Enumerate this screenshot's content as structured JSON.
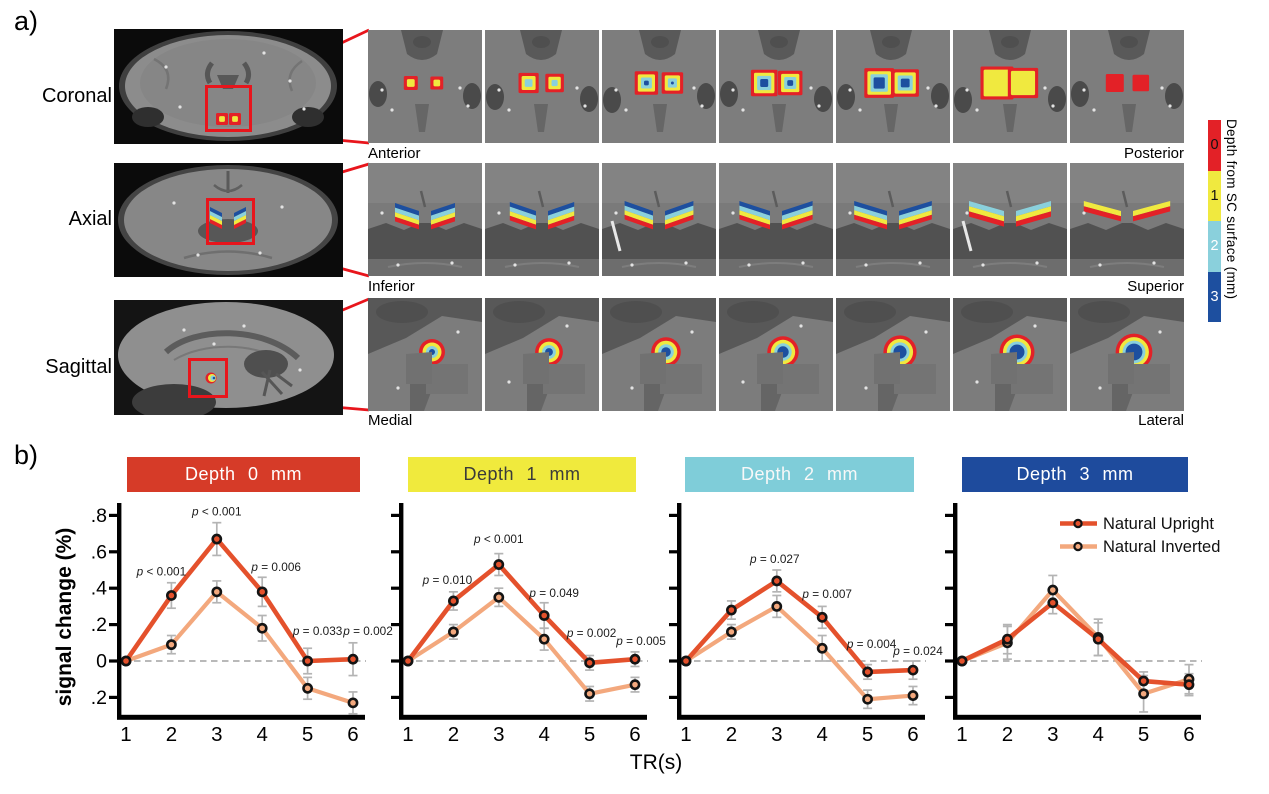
{
  "panel_a": {
    "label": "a)",
    "rows": [
      {
        "view": "Coronal",
        "left_label": "Anterior",
        "right_label": "Posterior",
        "n_slices": 7
      },
      {
        "view": "Axial",
        "left_label": "Inferior",
        "right_label": "Superior",
        "n_slices": 7
      },
      {
        "view": "Sagittal",
        "left_label": "Medial",
        "right_label": "Lateral",
        "n_slices": 7
      }
    ],
    "colorbar": {
      "title": "Depth from SC surface (mm)",
      "ticks": [
        "0",
        "1",
        "2",
        "3"
      ],
      "colors": [
        "#e32127",
        "#f0e93f",
        "#8ad0dc",
        "#1d4f9f"
      ],
      "tick_text_colors": [
        "#111111",
        "#111111",
        "#ffffff",
        "#ffffff"
      ]
    },
    "callout_color": "#e8151c"
  },
  "panel_b": {
    "label": "b)",
    "ylabel": "signal change (%)",
    "xlabel": "TR(s)",
    "legend": [
      {
        "label": "Natural Upright",
        "color": "#e4512c"
      },
      {
        "label": "Natural Inverted",
        "color": "#f3a87d"
      }
    ]
  },
  "chart_data": [
    {
      "type": "line",
      "title": "Depth 0 mm",
      "header_color": "#d63b28",
      "header_text_color": "#ffffff",
      "x": [
        1,
        2,
        3,
        4,
        5,
        6
      ],
      "xlabel": "TR(s)",
      "ylabel": "signal change (%)",
      "ylim": [
        -0.32,
        0.85
      ],
      "yticks": [
        0.8,
        0.6,
        0.4,
        0.2,
        0,
        -0.2
      ],
      "show_ytick_labels": true,
      "zero_line": true,
      "legend_visible": false,
      "series": [
        {
          "name": "Natural Upright",
          "color": "#e4512c",
          "values": [
            0,
            0.36,
            0.67,
            0.38,
            0.0,
            0.01
          ],
          "err": [
            0,
            0.07,
            0.09,
            0.08,
            0.07,
            0.09
          ]
        },
        {
          "name": "Natural Inverted",
          "color": "#f3a87d",
          "values": [
            0,
            0.09,
            0.38,
            0.18,
            -0.15,
            -0.23
          ],
          "err": [
            0,
            0.05,
            0.06,
            0.07,
            0.06,
            0.06
          ]
        }
      ],
      "annotations": [
        {
          "x": 2,
          "y": 0.47,
          "dx": -10,
          "text": "p < 0.001"
        },
        {
          "x": 3,
          "y": 0.8,
          "dx": 0,
          "text": "p < 0.001"
        },
        {
          "x": 4,
          "y": 0.495,
          "dx": 14,
          "text": "p = 0.006"
        },
        {
          "x": 5,
          "y": 0.143,
          "dx": 10,
          "text": "p = 0.033"
        },
        {
          "x": 6,
          "y": 0.143,
          "dx": 15,
          "text": "p = 0.002"
        }
      ]
    },
    {
      "type": "line",
      "title": "Depth 1 mm",
      "header_color": "#f0ea3d",
      "header_text_color": "#3a3a3a",
      "x": [
        1,
        2,
        3,
        4,
        5,
        6
      ],
      "xlabel": "TR(s)",
      "ylabel": "signal change (%)",
      "ylim": [
        -0.32,
        0.85
      ],
      "yticks": [
        0.8,
        0.6,
        0.4,
        0.2,
        0,
        -0.2
      ],
      "show_ytick_labels": false,
      "zero_line": true,
      "legend_visible": false,
      "series": [
        {
          "name": "Natural Upright",
          "color": "#e4512c",
          "values": [
            0,
            0.33,
            0.53,
            0.25,
            -0.01,
            0.01
          ],
          "err": [
            0,
            0.05,
            0.06,
            0.07,
            0.04,
            0.04
          ]
        },
        {
          "name": "Natural Inverted",
          "color": "#f3a87d",
          "values": [
            0,
            0.16,
            0.35,
            0.12,
            -0.18,
            -0.13
          ],
          "err": [
            0,
            0.04,
            0.05,
            0.06,
            0.04,
            0.04
          ]
        }
      ],
      "annotations": [
        {
          "x": 2,
          "y": 0.423,
          "dx": -6,
          "text": "p = 0.010"
        },
        {
          "x": 3,
          "y": 0.648,
          "dx": 0,
          "text": "p < 0.001"
        },
        {
          "x": 4,
          "y": 0.352,
          "dx": 10,
          "text": "p = 0.049"
        },
        {
          "x": 5,
          "y": 0.132,
          "dx": 2,
          "text": "p = 0.002"
        },
        {
          "x": 6,
          "y": 0.088,
          "dx": 6,
          "text": "p = 0.005"
        }
      ]
    },
    {
      "type": "line",
      "title": "Depth 2 mm",
      "header_color": "#7fcdd9",
      "header_text_color": "#f8f8f8",
      "x": [
        1,
        2,
        3,
        4,
        5,
        6
      ],
      "xlabel": "TR(s)",
      "ylabel": "signal change (%)",
      "ylim": [
        -0.32,
        0.85
      ],
      "yticks": [
        0.8,
        0.6,
        0.4,
        0.2,
        0,
        -0.2
      ],
      "show_ytick_labels": false,
      "zero_line": true,
      "legend_visible": false,
      "series": [
        {
          "name": "Natural Upright",
          "color": "#e4512c",
          "values": [
            0,
            0.28,
            0.44,
            0.24,
            -0.06,
            -0.05
          ],
          "err": [
            0,
            0.05,
            0.06,
            0.06,
            0.04,
            0.05
          ]
        },
        {
          "name": "Natural Inverted",
          "color": "#f3a87d",
          "values": [
            0,
            0.16,
            0.3,
            0.07,
            -0.21,
            -0.19
          ],
          "err": [
            0,
            0.04,
            0.06,
            0.07,
            0.05,
            0.05
          ]
        }
      ],
      "annotations": [
        {
          "x": 3,
          "y": 0.538,
          "dx": -2,
          "text": "p = 0.027"
        },
        {
          "x": 4,
          "y": 0.346,
          "dx": 5,
          "text": "p = 0.007"
        },
        {
          "x": 5,
          "y": 0.071,
          "dx": 4,
          "text": "p = 0.004"
        },
        {
          "x": 6,
          "y": 0.033,
          "dx": 5,
          "text": "p = 0.024"
        }
      ]
    },
    {
      "type": "line",
      "title": "Depth 3 mm",
      "header_color": "#1e4b9d",
      "header_text_color": "#ffffff",
      "x": [
        1,
        2,
        3,
        4,
        5,
        6
      ],
      "xlabel": "TR(s)",
      "ylabel": "signal change (%)",
      "ylim": [
        -0.32,
        0.85
      ],
      "yticks": [
        0.8,
        0.6,
        0.4,
        0.2,
        0,
        -0.2
      ],
      "show_ytick_labels": false,
      "zero_line": true,
      "legend_visible": true,
      "series": [
        {
          "name": "Natural Upright",
          "color": "#e4512c",
          "values": [
            0,
            0.12,
            0.32,
            0.12,
            -0.11,
            -0.13
          ],
          "err": [
            0,
            0.08,
            0.06,
            0.09,
            0.05,
            0.06
          ]
        },
        {
          "name": "Natural Inverted",
          "color": "#f3a87d",
          "values": [
            0,
            0.1,
            0.39,
            0.13,
            -0.18,
            -0.1
          ],
          "err": [
            0,
            0.09,
            0.08,
            0.1,
            0.1,
            0.08
          ]
        }
      ],
      "annotations": []
    }
  ]
}
